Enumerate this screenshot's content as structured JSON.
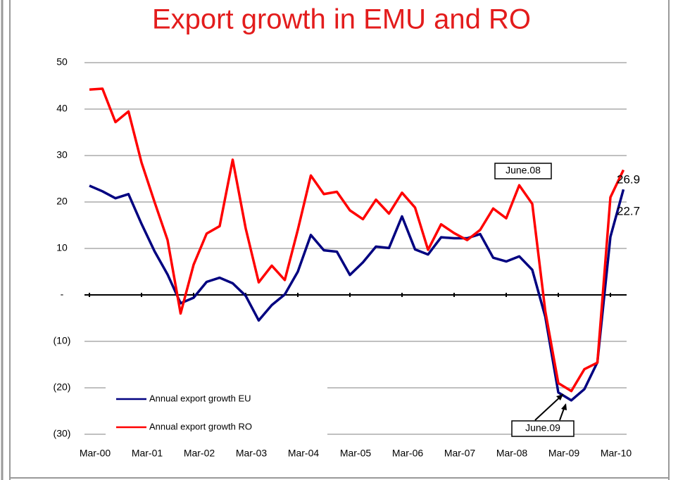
{
  "chart_data": {
    "type": "line",
    "title": "Export growth in EMU and RO",
    "categories": [
      "Mar-00",
      null,
      null,
      null,
      "Mar-01",
      null,
      null,
      null,
      "Mar-02",
      null,
      null,
      null,
      "Mar-03",
      null,
      null,
      null,
      "Mar-04",
      null,
      null,
      null,
      "Mar-05",
      null,
      null,
      null,
      "Mar-06",
      null,
      null,
      null,
      "Mar-07",
      null,
      null,
      null,
      "Mar-08",
      null,
      null,
      null,
      "Mar-09",
      null,
      null,
      null,
      "Mar-10",
      null
    ],
    "series": [
      {
        "name": "Annual export growth EU",
        "color": "#000080",
        "values": [
          23.5,
          22.3,
          20.8,
          21.7,
          15.3,
          9.4,
          4.4,
          -1.8,
          -0.6,
          2.8,
          3.7,
          2.5,
          -0.2,
          -5.5,
          -2.2,
          0.1,
          5,
          12.9,
          9.6,
          9.3,
          4.3,
          7,
          10.4,
          10.1,
          16.9,
          9.8,
          8.7,
          12.4,
          12.2,
          12.2,
          13.1,
          8,
          7.2,
          8.3,
          5.4,
          -4.7,
          -21,
          -22.7,
          -20.3,
          -14.5,
          12.5,
          22.7
        ]
      },
      {
        "name": "Annual export growth RO",
        "color": "#ff0000",
        "values": [
          44.2,
          44.4,
          37.2,
          39.5,
          28.5,
          20,
          11.8,
          -4,
          6.5,
          13.2,
          14.8,
          29.1,
          14.3,
          2.7,
          6.3,
          3.2,
          14,
          25.7,
          21.7,
          22.2,
          18.2,
          16.3,
          20.5,
          17.5,
          22,
          18.8,
          9.7,
          15.2,
          13.3,
          11.8,
          14,
          18.6,
          16.5,
          23.6,
          19.6,
          -3.5,
          -19,
          -20.7,
          -16,
          -14.6,
          21,
          26.9
        ]
      }
    ],
    "ylim": [
      -30,
      50
    ],
    "yticks": [
      {
        "value": -30,
        "label": "(30)"
      },
      {
        "value": -20,
        "label": "(20)"
      },
      {
        "value": -10,
        "label": "(10)"
      },
      {
        "value": 0,
        "label": "-"
      },
      10,
      20,
      30,
      40,
      50
    ],
    "grid": true,
    "legend": "lower-left",
    "annotations": [
      "June.08",
      "June.09"
    ]
  }
}
